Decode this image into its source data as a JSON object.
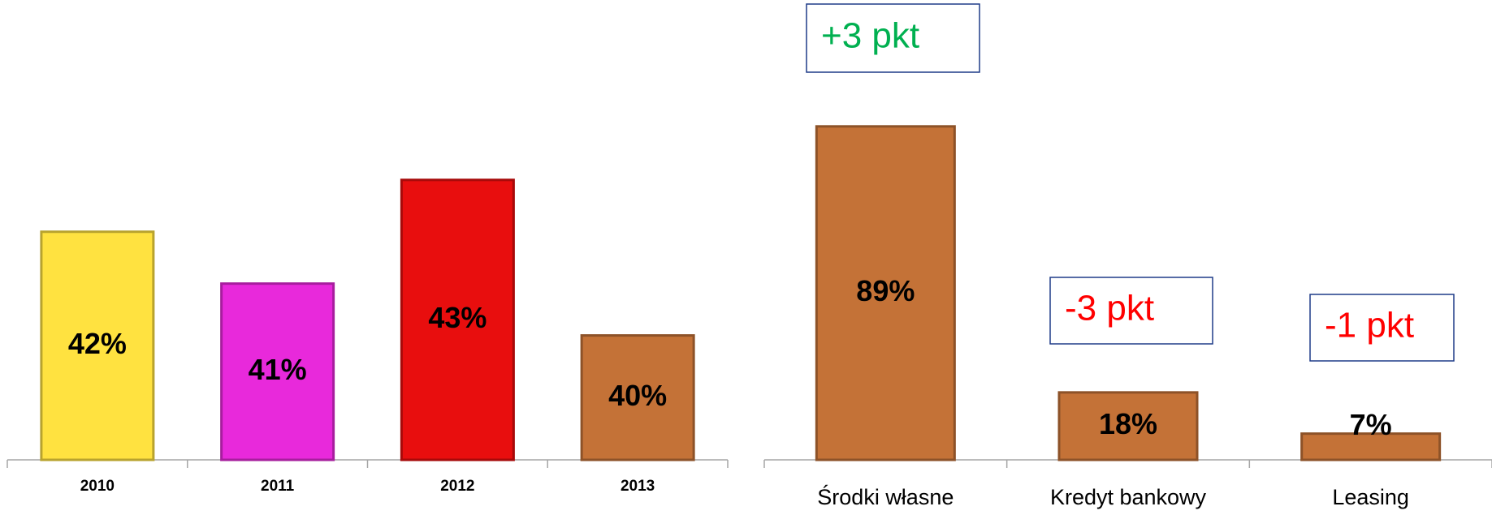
{
  "chart_data": [
    {
      "type": "bar",
      "categories": [
        "2010",
        "2011",
        "2012",
        "2013"
      ],
      "values": [
        42,
        41,
        43,
        40
      ],
      "value_labels": [
        "42%",
        "41%",
        "43%",
        "40%"
      ],
      "colors": [
        "#ffe240",
        "#e829db",
        "#e80e0e",
        "#c47237"
      ],
      "ylim": [
        37.6,
        45
      ]
    },
    {
      "type": "bar",
      "categories": [
        "Środki własne",
        "Kredyt bankowy",
        "Leasing"
      ],
      "values": [
        89,
        18,
        7
      ],
      "value_labels": [
        "89%",
        "18%",
        "7%"
      ],
      "colors": [
        "#c47237",
        "#c47237",
        "#c47237"
      ],
      "ylim": [
        0,
        100
      ],
      "annotations": [
        {
          "text": "+3 pkt",
          "color": "#00b050"
        },
        {
          "text": "-3 pkt",
          "color": "#ff0000"
        },
        {
          "text": "-1 pkt",
          "color": "#ff0000"
        }
      ]
    }
  ]
}
